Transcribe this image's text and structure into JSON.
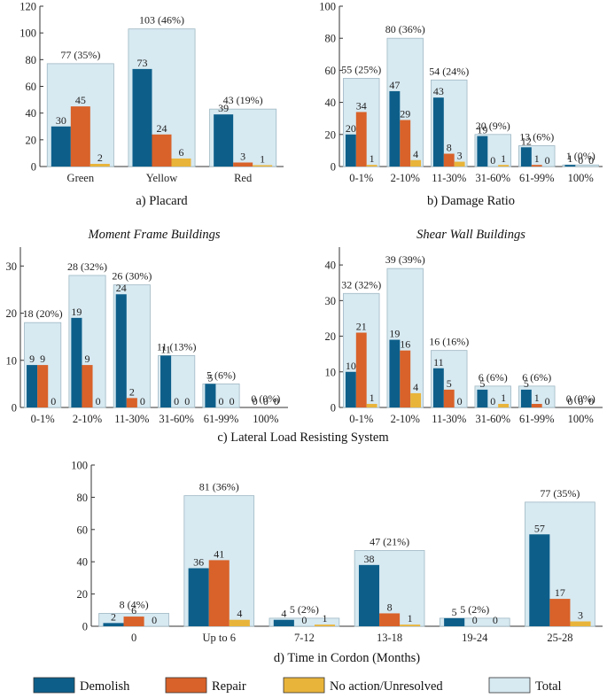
{
  "colors": {
    "demolish": "#0d5f8a",
    "repair": "#d8622a",
    "no_action": "#e8b43a",
    "total": "#d7e9f1",
    "total_stroke": "#9fb8c4",
    "axis": "#333333"
  },
  "legend": {
    "demolish": "Demolish",
    "repair": "Repair",
    "no_action": "No action/Unresolved",
    "total": "Total"
  },
  "chart_data": [
    {
      "id": "a",
      "type": "bar",
      "caption": "a) Placard",
      "title": "",
      "categories": [
        "Green",
        "Yellow",
        "Red"
      ],
      "ylim": [
        0,
        120
      ],
      "yticks": [
        0,
        20,
        40,
        60,
        80,
        100,
        120
      ],
      "series": [
        {
          "name": "Demolish",
          "values": [
            30,
            73,
            39
          ]
        },
        {
          "name": "Repair",
          "values": [
            45,
            24,
            3
          ]
        },
        {
          "name": "No action/Unresolved",
          "values": [
            2,
            6,
            1
          ]
        }
      ],
      "total": [
        77,
        103,
        43
      ],
      "total_labels": [
        "77 (35%)",
        "103 (46%)",
        "43 (19%)"
      ]
    },
    {
      "id": "b",
      "type": "bar",
      "caption": "b) Damage Ratio",
      "title": "",
      "categories": [
        "0-1%",
        "2-10%",
        "11-30%",
        "31-60%",
        "61-99%",
        "100%"
      ],
      "ylim": [
        0,
        100
      ],
      "yticks": [
        0,
        20,
        40,
        60,
        80,
        100
      ],
      "series": [
        {
          "name": "Demolish",
          "values": [
            20,
            47,
            43,
            19,
            12,
            1
          ]
        },
        {
          "name": "Repair",
          "values": [
            34,
            29,
            8,
            0,
            1,
            0
          ]
        },
        {
          "name": "No action/Unresolved",
          "values": [
            1,
            4,
            3,
            1,
            0,
            0
          ]
        }
      ],
      "total": [
        55,
        80,
        54,
        20,
        13,
        1
      ],
      "total_labels": [
        "55 (25%)",
        "80 (36%)",
        "54 (24%)",
        "20 (9%)",
        "13 (6%)",
        "1 (0%)"
      ]
    },
    {
      "id": "c1",
      "type": "bar",
      "caption": "",
      "title": "Moment Frame Buildings",
      "categories": [
        "0-1%",
        "2-10%",
        "11-30%",
        "31-60%",
        "61-99%",
        "100%"
      ],
      "ylim": [
        0,
        34
      ],
      "yticks": [
        0,
        10,
        20,
        30
      ],
      "series": [
        {
          "name": "Demolish",
          "values": [
            9,
            19,
            24,
            11,
            5,
            0
          ]
        },
        {
          "name": "Repair",
          "values": [
            9,
            9,
            2,
            0,
            0,
            0
          ]
        },
        {
          "name": "No action/Unresolved",
          "values": [
            0,
            0,
            0,
            0,
            0,
            0
          ]
        }
      ],
      "total": [
        18,
        28,
        26,
        11,
        5,
        0
      ],
      "total_labels": [
        "18 (20%)",
        "28 (32%)",
        "26 (30%)",
        "11 (13%)",
        "5 (6%)",
        "0 (0%)"
      ]
    },
    {
      "id": "c2",
      "type": "bar",
      "caption": "",
      "title": "Shear Wall Buildings",
      "categories": [
        "0-1%",
        "2-10%",
        "11-30%",
        "31-60%",
        "61-99%",
        "100%"
      ],
      "ylim": [
        0,
        45
      ],
      "yticks": [
        0,
        10,
        20,
        30,
        40
      ],
      "series": [
        {
          "name": "Demolish",
          "values": [
            10,
            19,
            11,
            5,
            5,
            0
          ]
        },
        {
          "name": "Repair",
          "values": [
            21,
            16,
            5,
            0,
            1,
            0
          ]
        },
        {
          "name": "No action/Unresolved",
          "values": [
            1,
            4,
            0,
            1,
            0,
            0
          ]
        }
      ],
      "total": [
        32,
        39,
        16,
        6,
        6,
        0
      ],
      "total_labels": [
        "32 (32%)",
        "39 (39%)",
        "16 (16%)",
        "6 (6%)",
        "6 (6%)",
        "0 (0%)"
      ]
    },
    {
      "id": "d",
      "type": "bar",
      "caption": "d) Time in Cordon (Months)",
      "title": "",
      "categories": [
        "0",
        "Up to 6",
        "7-12",
        "13-18",
        "19-24",
        "25-28"
      ],
      "ylim": [
        0,
        100
      ],
      "yticks": [
        0,
        20,
        40,
        60,
        80,
        100
      ],
      "series": [
        {
          "name": "Demolish",
          "values": [
            2,
            36,
            4,
            38,
            5,
            57
          ]
        },
        {
          "name": "Repair",
          "values": [
            6,
            41,
            0,
            8,
            0,
            17
          ]
        },
        {
          "name": "No action/Unresolved",
          "values": [
            0,
            4,
            1,
            1,
            0,
            3
          ]
        }
      ],
      "total": [
        8,
        81,
        5,
        47,
        5,
        77
      ],
      "total_labels": [
        "8 (4%)",
        "81 (36%)",
        "5 (2%)",
        "47 (21%)",
        "5 (2%)",
        "77 (35%)"
      ]
    }
  ],
  "shared_caption": "c) Lateral Load Resisting System"
}
